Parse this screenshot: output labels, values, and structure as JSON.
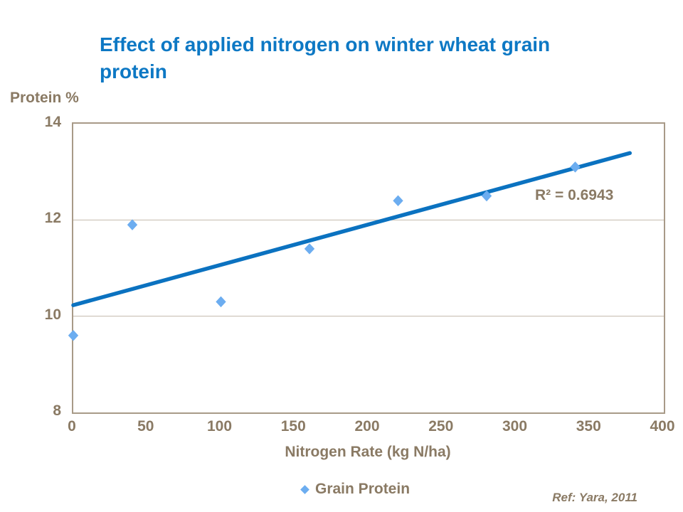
{
  "slide": {
    "title": "Effect of applied nitrogen on winter wheat grain\nprotein",
    "ref_note": "Ref: Yara, 2011"
  },
  "chart_data": {
    "type": "scatter",
    "title": "Effect of applied nitrogen on winter wheat grain protein",
    "xlabel": "Nitrogen Rate (kg N/ha)",
    "ylabel": "Protein %",
    "xlim": [
      0,
      400
    ],
    "ylim": [
      8,
      14
    ],
    "x_ticks": [
      0,
      50,
      100,
      150,
      200,
      250,
      300,
      350,
      400
    ],
    "y_ticks": [
      8,
      10,
      12,
      14
    ],
    "gridlines_y": [
      10,
      12
    ],
    "grid": "horizontal-only",
    "legend_position": "bottom-center",
    "series": [
      {
        "name": "Grain Protein",
        "marker": "diamond",
        "marker_color": "#6cadf0",
        "points": [
          [
            0,
            9.6
          ],
          [
            40,
            11.9
          ],
          [
            100,
            10.3
          ],
          [
            160,
            11.4
          ],
          [
            220,
            12.4
          ],
          [
            280,
            12.5
          ],
          [
            340,
            13.1
          ]
        ]
      }
    ],
    "trendline": {
      "x_start": 0,
      "y_start": 10.23,
      "x_end": 377,
      "y_end": 13.39,
      "color": "#0b72c0",
      "r2_label": "R² = 0.6943"
    }
  },
  "colors": {
    "title_blue": "#0d78c4",
    "trend_blue": "#0b72c0",
    "marker_blue": "#6cadf0",
    "axis_text_brown": "#8a7a64",
    "border_taupe": "#a89a88",
    "gridline_taupe": "#c3b9ab"
  }
}
